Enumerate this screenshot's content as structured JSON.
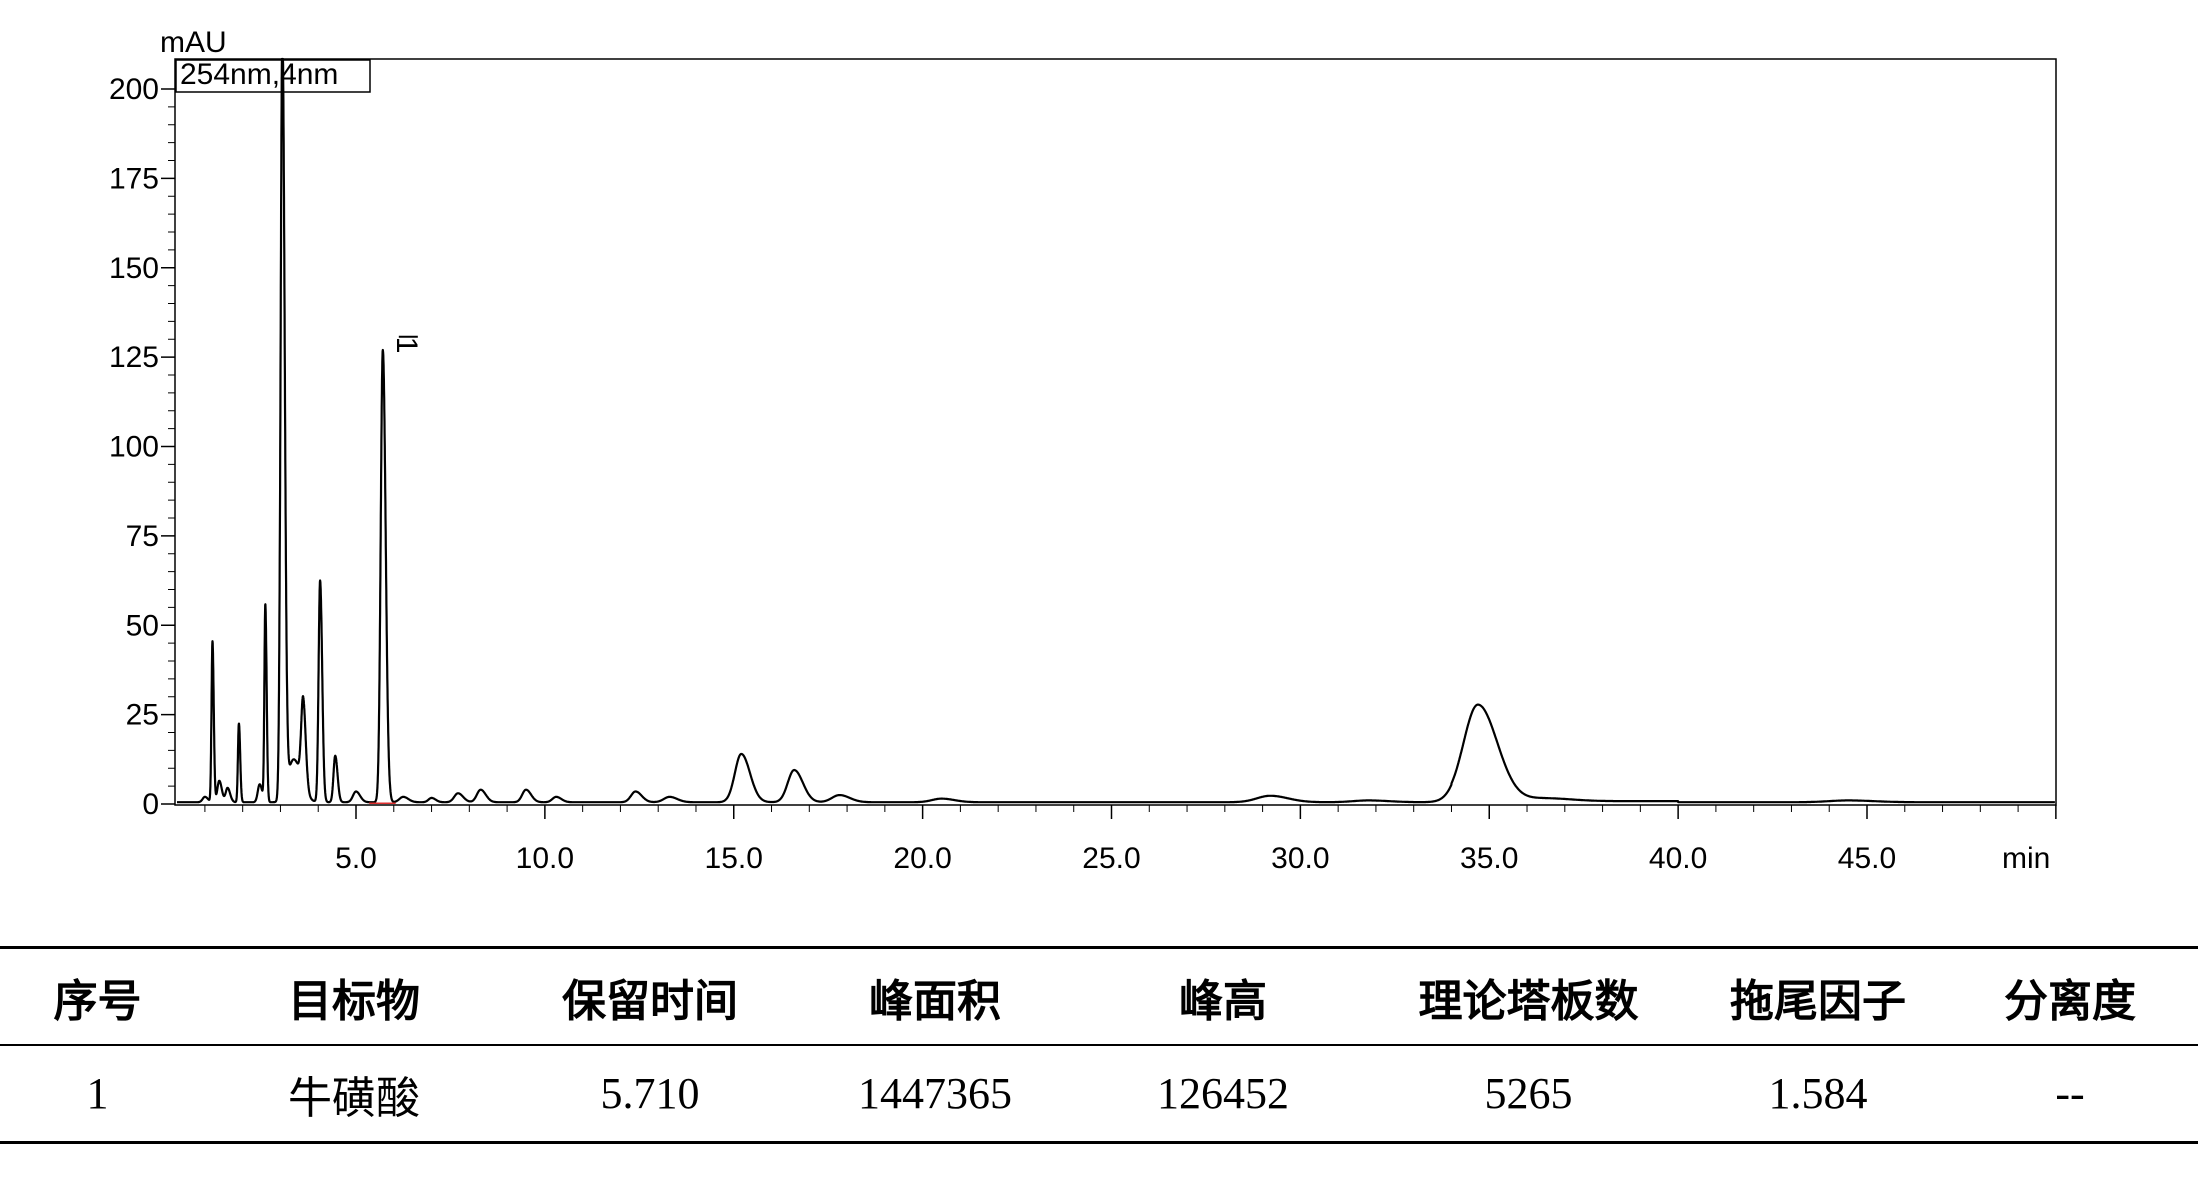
{
  "chart_data": {
    "type": "line",
    "ylabel": "mAU",
    "xlabel": "min",
    "legend": "254nm,4nm",
    "legend_position": "top-left",
    "xlim": [
      0,
      50.0
    ],
    "ylim": [
      -5,
      210
    ],
    "x_ticks": [
      5.0,
      10.0,
      15.0,
      20.0,
      25.0,
      30.0,
      35.0,
      40.0,
      45.0
    ],
    "x_tick_labels": [
      "5.0",
      "10.0",
      "15.0",
      "20.0",
      "25.0",
      "30.0",
      "35.0",
      "40.0",
      "45.0"
    ],
    "y_ticks": [
      0,
      25,
      50,
      75,
      100,
      125,
      150,
      175,
      200
    ],
    "y_tick_labels": [
      "0",
      "25",
      "50",
      "75",
      "100",
      "125",
      "150",
      "175",
      "200"
    ],
    "grid": false,
    "baseline": 0.5,
    "peaks": [
      {
        "rt": 1.0,
        "height": 1.5,
        "sigma": 0.06
      },
      {
        "rt": 1.2,
        "height": 45,
        "sigma": 0.025
      },
      {
        "rt": 1.38,
        "height": 6,
        "sigma": 0.05
      },
      {
        "rt": 1.6,
        "height": 4,
        "sigma": 0.05
      },
      {
        "rt": 1.9,
        "height": 22,
        "sigma": 0.025
      },
      {
        "rt": 2.45,
        "height": 5,
        "sigma": 0.05
      },
      {
        "rt": 2.6,
        "height": 55,
        "sigma": 0.025
      },
      {
        "rt": 3.05,
        "height": 215,
        "sigma": 0.045
      },
      {
        "rt": 3.35,
        "height": 12,
        "sigma": 0.15
      },
      {
        "rt": 3.6,
        "height": 24,
        "sigma": 0.05
      },
      {
        "rt": 4.05,
        "height": 62,
        "sigma": 0.04
      },
      {
        "rt": 4.45,
        "height": 13,
        "sigma": 0.045
      },
      {
        "rt": 5.0,
        "height": 3,
        "sigma": 0.08
      },
      {
        "rt": 5.71,
        "height": 126.5,
        "sigma": 0.055
      },
      {
        "rt": 6.25,
        "height": 1.5,
        "sigma": 0.1
      },
      {
        "rt": 7.0,
        "height": 1.2,
        "sigma": 0.08
      },
      {
        "rt": 7.7,
        "height": 2.5,
        "sigma": 0.1
      },
      {
        "rt": 8.3,
        "height": 3.5,
        "sigma": 0.1
      },
      {
        "rt": 9.5,
        "height": 3.5,
        "sigma": 0.1
      },
      {
        "rt": 10.3,
        "height": 1.5,
        "sigma": 0.1
      },
      {
        "rt": 12.4,
        "height": 3,
        "sigma": 0.12
      },
      {
        "rt": 13.3,
        "height": 1.5,
        "sigma": 0.15
      },
      {
        "rt": 15.2,
        "height": 13.5,
        "sigma": 0.17
      },
      {
        "rt": 16.6,
        "height": 9,
        "sigma": 0.17
      },
      {
        "rt": 17.8,
        "height": 2,
        "sigma": 0.2
      },
      {
        "rt": 20.5,
        "height": 1,
        "sigma": 0.25
      },
      {
        "rt": 29.2,
        "height": 1.8,
        "sigma": 0.35
      },
      {
        "rt": 31.8,
        "height": 0.5,
        "sigma": 0.4
      },
      {
        "rt": 34.7,
        "height": 27,
        "sigma": 0.38
      },
      {
        "rt": 36.5,
        "height": 0.8,
        "sigma": 0.5
      },
      {
        "rt": 44.5,
        "height": 0.5,
        "sigma": 0.5
      }
    ],
    "annotations": [
      {
        "label": "1",
        "x": 5.71,
        "y": 126.5
      }
    ]
  },
  "table": {
    "headers": [
      "序号",
      "目标物",
      "保留时间",
      "峰面积",
      "峰高",
      "理论塔板数",
      "拖尾因子",
      "分离度"
    ],
    "rows": [
      [
        "1",
        "牛磺酸",
        "5.710",
        "1447365",
        "126452",
        "5265",
        "1.584",
        "--"
      ]
    ]
  }
}
